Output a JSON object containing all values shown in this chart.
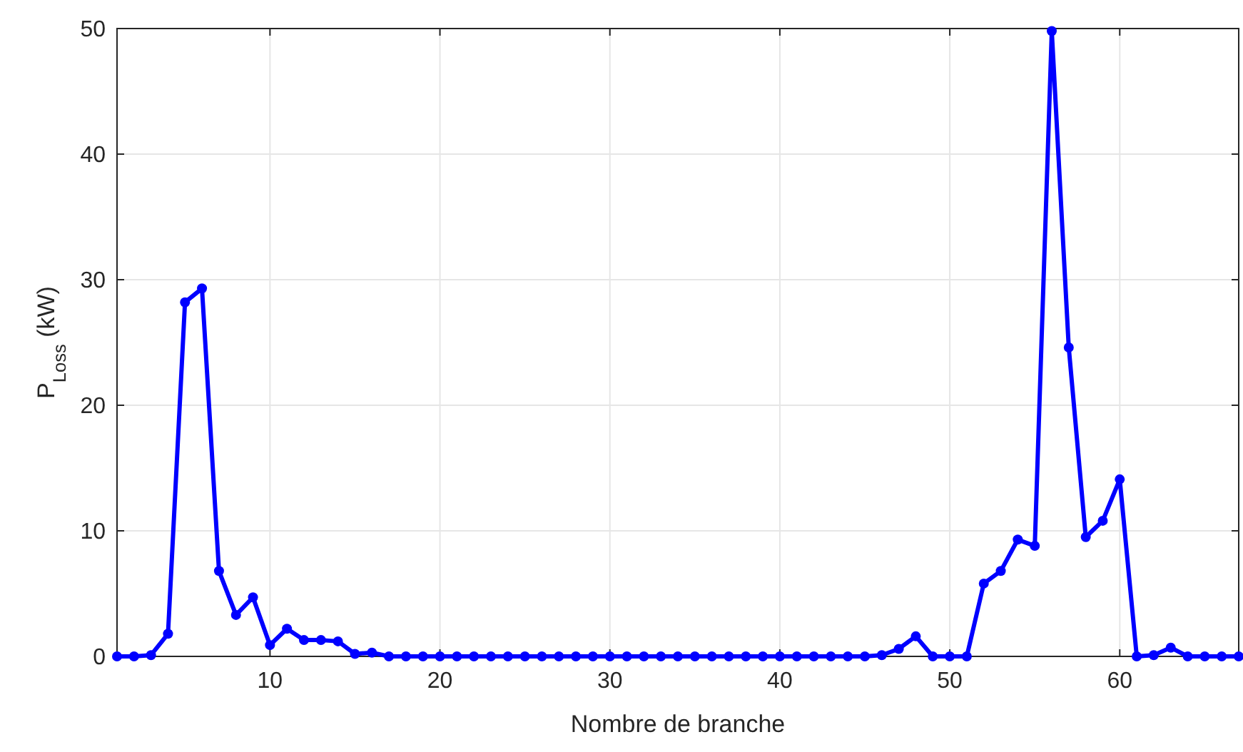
{
  "chart_data": {
    "type": "line",
    "xlabel": "Nombre de branche",
    "ylabel": "P$_{Loss}$ (kW)",
    "x": [
      1,
      2,
      3,
      4,
      5,
      6,
      7,
      8,
      9,
      10,
      11,
      12,
      13,
      14,
      15,
      16,
      17,
      18,
      19,
      20,
      21,
      22,
      23,
      24,
      25,
      26,
      27,
      28,
      29,
      30,
      31,
      32,
      33,
      34,
      35,
      36,
      37,
      38,
      39,
      40,
      41,
      42,
      43,
      44,
      45,
      46,
      47,
      48,
      49,
      50,
      51,
      52,
      53,
      54,
      55,
      56,
      57,
      58,
      59,
      60,
      61,
      62,
      63,
      64,
      65,
      66,
      67
    ],
    "series": [
      {
        "color": "#0000ff",
        "values": [
          0,
          0,
          0.1,
          1.8,
          28.2,
          29.3,
          6.8,
          3.3,
          4.7,
          0.9,
          2.2,
          1.3,
          1.3,
          1.2,
          0.2,
          0.3,
          0,
          0,
          0,
          0,
          0,
          0,
          0,
          0,
          0,
          0,
          0,
          0,
          0,
          0,
          0,
          0,
          0,
          0,
          0,
          0,
          0,
          0,
          0,
          0,
          0,
          0,
          0,
          0,
          0,
          0.1,
          0.6,
          1.6,
          0,
          0,
          0,
          5.8,
          6.8,
          9.3,
          8.8,
          49.8,
          24.6,
          9.5,
          10.8,
          14.1,
          0,
          0.1,
          0.7,
          0,
          0,
          0,
          0
        ]
      }
    ],
    "xlim": [
      1,
      67
    ],
    "xticks": [
      10,
      20,
      30,
      40,
      50,
      60
    ],
    "ylim": [
      0,
      50
    ],
    "yticks": [
      0,
      10,
      20,
      30,
      40,
      50
    ],
    "grid": true,
    "marker": "circle",
    "line_style": "solid"
  }
}
